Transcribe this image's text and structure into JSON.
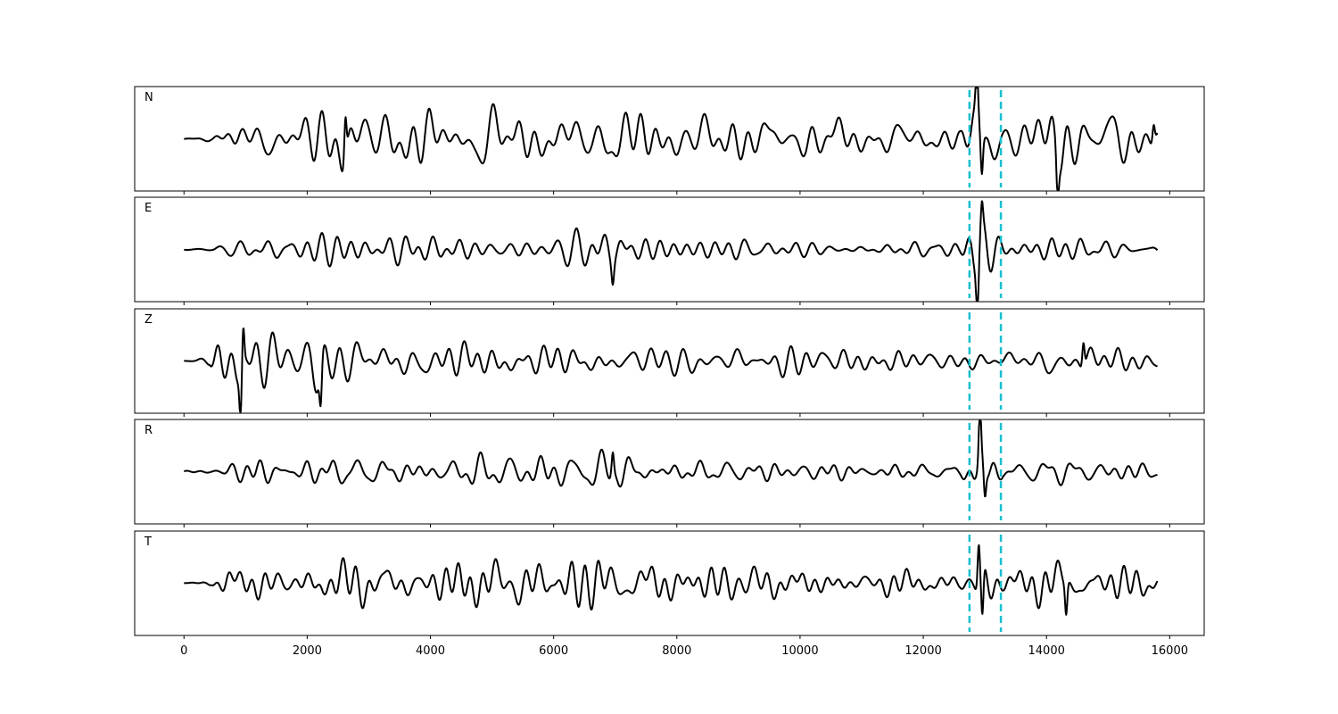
{
  "chart_data": {
    "type": "line",
    "shared_x_axis": true,
    "xlim": [
      -800,
      16560
    ],
    "x_ticks": [
      0,
      2000,
      4000,
      6000,
      8000,
      10000,
      12000,
      14000,
      16000
    ],
    "x_tick_labels": [
      "0",
      "2000",
      "4000",
      "6000",
      "8000",
      "10000",
      "12000",
      "14000",
      "16000"
    ],
    "sample_count": 15800,
    "vertical_markers": [
      12750,
      13260
    ],
    "marker_color": "#17becf",
    "trace_color": "#000000",
    "grid": false,
    "panels": [
      {
        "label": "N",
        "baseline": 0.0,
        "ylim": [
          -1.15,
          1.15
        ],
        "envelope": [
          [
            0,
            0.02
          ],
          [
            450,
            0.05
          ],
          [
            800,
            0.35
          ],
          [
            2000,
            0.5
          ],
          [
            2650,
            0.9
          ],
          [
            3000,
            0.55
          ],
          [
            5000,
            0.75
          ],
          [
            6000,
            0.55
          ],
          [
            7500,
            0.6
          ],
          [
            8500,
            0.45
          ],
          [
            10500,
            0.5
          ],
          [
            12000,
            0.35
          ],
          [
            12600,
            0.25
          ],
          [
            12900,
            0.9
          ],
          [
            13300,
            0.35
          ],
          [
            14200,
            0.75
          ],
          [
            15800,
            0.45
          ]
        ],
        "spikes": [
          {
            "x": 2620,
            "y": 0.95
          },
          {
            "x": 12870,
            "y": 1.0
          },
          {
            "x": 12950,
            "y": -0.85
          },
          {
            "x": 14180,
            "y": -0.8
          },
          {
            "x": 15740,
            "y": 0.4
          }
        ]
      },
      {
        "label": "E",
        "baseline": 0.0,
        "ylim": [
          -1.15,
          1.15
        ],
        "envelope": [
          [
            0,
            0.02
          ],
          [
            450,
            0.05
          ],
          [
            700,
            0.25
          ],
          [
            2000,
            0.35
          ],
          [
            3000,
            0.3
          ],
          [
            5000,
            0.3
          ],
          [
            6900,
            0.45
          ],
          [
            8500,
            0.2
          ],
          [
            11000,
            0.2
          ],
          [
            12600,
            0.18
          ],
          [
            12850,
            0.6
          ],
          [
            13300,
            0.25
          ],
          [
            14300,
            0.3
          ],
          [
            15800,
            0.2
          ]
        ],
        "spikes": [
          {
            "x": 12880,
            "y": -1.05
          },
          {
            "x": 12950,
            "y": 0.55
          },
          {
            "x": 6960,
            "y": -0.4
          }
        ]
      },
      {
        "label": "Z",
        "baseline": 0.0,
        "ylim": [
          -1.15,
          1.15
        ],
        "envelope": [
          [
            0,
            0.02
          ],
          [
            420,
            0.08
          ],
          [
            600,
            0.55
          ],
          [
            950,
            0.8
          ],
          [
            2000,
            0.55
          ],
          [
            2200,
            0.7
          ],
          [
            3000,
            0.55
          ],
          [
            4200,
            0.45
          ],
          [
            6000,
            0.35
          ],
          [
            9000,
            0.3
          ],
          [
            11000,
            0.25
          ],
          [
            12600,
            0.2
          ],
          [
            13200,
            0.25
          ],
          [
            14000,
            0.45
          ],
          [
            15800,
            0.25
          ]
        ],
        "spikes": [
          {
            "x": 920,
            "y": -0.95
          },
          {
            "x": 960,
            "y": 0.85
          },
          {
            "x": 2220,
            "y": -0.85
          },
          {
            "x": 14600,
            "y": 0.55
          }
        ]
      },
      {
        "label": "R",
        "baseline": 0.0,
        "ylim": [
          -1.15,
          1.15
        ],
        "envelope": [
          [
            0,
            0.02
          ],
          [
            450,
            0.05
          ],
          [
            700,
            0.3
          ],
          [
            2000,
            0.35
          ],
          [
            3500,
            0.3
          ],
          [
            6000,
            0.35
          ],
          [
            7000,
            0.45
          ],
          [
            8500,
            0.25
          ],
          [
            11000,
            0.2
          ],
          [
            12600,
            0.18
          ],
          [
            12900,
            0.9
          ],
          [
            13300,
            0.2
          ],
          [
            15000,
            0.2
          ],
          [
            15800,
            0.25
          ]
        ],
        "spikes": [
          {
            "x": 12920,
            "y": 1.1
          },
          {
            "x": 13000,
            "y": -0.6
          },
          {
            "x": 6960,
            "y": 0.5
          }
        ]
      },
      {
        "label": "T",
        "baseline": 0.0,
        "ylim": [
          -1.15,
          1.15
        ],
        "envelope": [
          [
            0,
            0.02
          ],
          [
            450,
            0.05
          ],
          [
            700,
            0.35
          ],
          [
            2000,
            0.45
          ],
          [
            3500,
            0.5
          ],
          [
            5500,
            0.55
          ],
          [
            7800,
            0.5
          ],
          [
            9000,
            0.35
          ],
          [
            11000,
            0.3
          ],
          [
            12600,
            0.2
          ],
          [
            12900,
            0.85
          ],
          [
            13300,
            0.3
          ],
          [
            14300,
            0.6
          ],
          [
            15800,
            0.35
          ]
        ],
        "spikes": [
          {
            "x": 12900,
            "y": 0.95
          },
          {
            "x": 12960,
            "y": -1.0
          },
          {
            "x": 14320,
            "y": -0.7
          }
        ]
      }
    ]
  }
}
